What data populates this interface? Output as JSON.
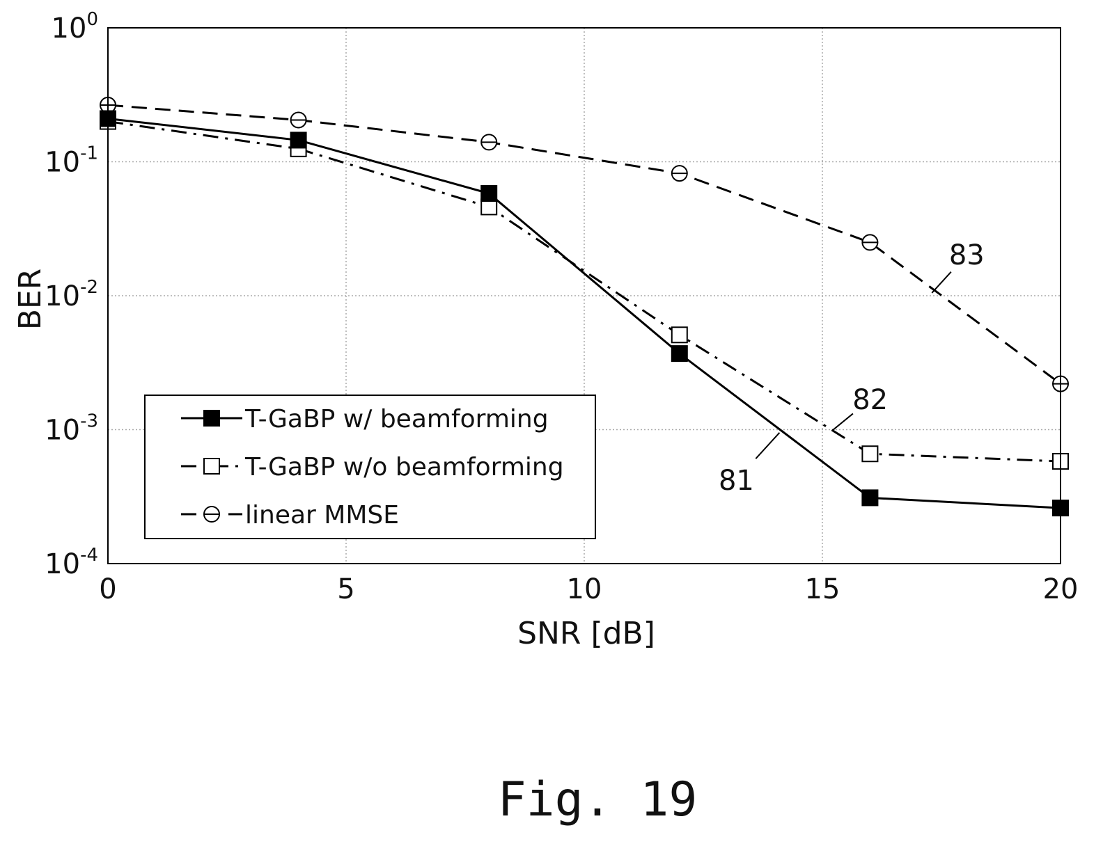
{
  "chart_data": {
    "type": "line",
    "xlabel": "SNR [dB]",
    "ylabel": "BER",
    "xlim": [
      0,
      20
    ],
    "ylim": [
      0.0001,
      1
    ],
    "yscale": "log",
    "grid": true,
    "legend_position": "bottom-left",
    "x_ticks": [
      0,
      5,
      10,
      15,
      20
    ],
    "x_tick_labels": [
      "0",
      "5",
      "10",
      "15",
      "20"
    ],
    "y_ticks": [
      {
        "value": 1,
        "base": "10",
        "exp": "0"
      },
      {
        "value": 0.1,
        "base": "10",
        "exp": "-1"
      },
      {
        "value": 0.01,
        "base": "10",
        "exp": "-2"
      },
      {
        "value": 0.001,
        "base": "10",
        "exp": "-3"
      },
      {
        "value": 0.0001,
        "base": "10",
        "exp": "-4"
      }
    ],
    "x": [
      0,
      4,
      8,
      12,
      16,
      20
    ],
    "series": [
      {
        "name": "T-GaBP w/ beamforming",
        "marker": "square-filled",
        "line": "solid",
        "values": [
          0.21,
          0.145,
          0.058,
          0.0037,
          0.00031,
          0.00026
        ]
      },
      {
        "name": "T-GaBP w/o beamforming",
        "marker": "square-open",
        "line": "dashdot",
        "values": [
          0.2,
          0.125,
          0.046,
          0.0051,
          0.00066,
          0.00058
        ]
      },
      {
        "name": "linear MMSE",
        "marker": "circle-open",
        "line": "dashed",
        "values": [
          0.265,
          0.205,
          0.14,
          0.082,
          0.025,
          0.0022
        ]
      }
    ],
    "annotations": [
      {
        "text": "81",
        "series": 0,
        "x": 14.1,
        "y": 0.00095
      },
      {
        "text": "82",
        "series": 1,
        "x": 15.2,
        "y": 0.00098
      },
      {
        "text": "83",
        "series": 2,
        "x": 17.3,
        "y": 0.0105
      }
    ]
  },
  "caption": "Fig. 19"
}
